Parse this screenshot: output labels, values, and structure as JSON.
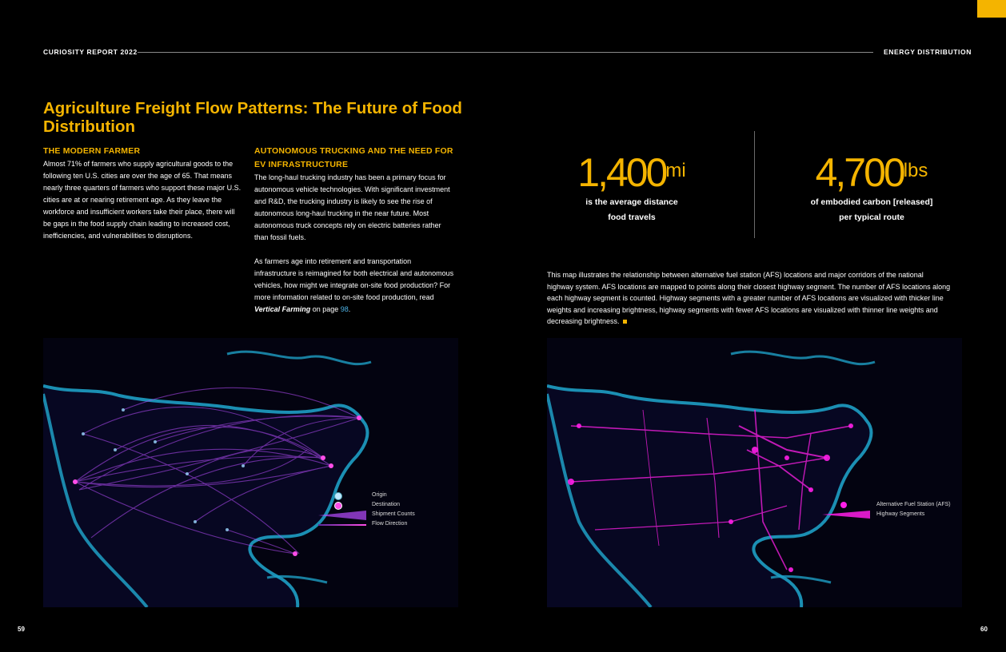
{
  "header": {
    "left": "CURIOSITY REPORT 2022",
    "right": "ENERGY DISTRIBUTION"
  },
  "title": "Agriculture Freight Flow Patterns: The Future of Food Distribution",
  "sections": {
    "modern_farmer": {
      "heading": "THE MODERN FARMER",
      "body": "Almost 71% of farmers who supply agricultural goods to the following ten U.S. cities are over the age of 65. That means nearly three quarters of farmers who support these major U.S. cities are at or nearing retirement age. As they leave the workforce and insufficient workers take their place, there will be gaps in the food supply chain leading to increased cost, inefficiencies, and vulnerabilities to disruptions."
    },
    "autonomous": {
      "heading": "AUTONOMOUS TRUCKING AND THE NEED FOR EV INFRASTRUCTURE",
      "p1": "The long-haul trucking industry has been a primary focus for autonomous vehicle technologies. With significant investment and R&D, the trucking industry is likely to see the rise of autonomous long-haul trucking in the near future. Most autonomous truck concepts rely on electric batteries rather than fossil fuels.",
      "p2_lead": "As farmers age into retirement and transportation infrastructure is reimagined for both electrical and autonomous vehicles, how might we integrate on-site food production? For more information related to on-site food production, read ",
      "p2_ref": "Vertical Farming",
      "p2_mid": " on page ",
      "p2_page": "98",
      "p2_end": "."
    }
  },
  "stats": [
    {
      "value": "1,400",
      "unit": "mi",
      "line1": "is the average distance",
      "line2": "food travels"
    },
    {
      "value": "4,700",
      "unit": "lbs",
      "line1": "of embodied carbon [released]",
      "line2": "per typical route"
    }
  ],
  "caption": "This map illustrates the relationship between alternative fuel station (AFS) locations and major corridors of the national highway system. AFS locations are mapped to points along their closest highway segment. The number of AFS locations along each highway segment is counted. Highway segments with a greater number of AFS locations are visualized with thicker line weights and increasing brightness, highway segments with fewer AFS locations are visualized with thinner line weights and decreasing brightness.",
  "legend_left": {
    "origin": "Origin",
    "destination": "Destination",
    "shipment": "Shipment Counts",
    "flow": "Flow Direction"
  },
  "legend_right": {
    "afs": "Alternative Fuel Station (AFS)",
    "segments": "Highway Segments"
  },
  "colors": {
    "accent": "#f4b400",
    "flow": "#b84dff",
    "afs": "#ff1fe8",
    "coast": "#1e9fc4"
  },
  "page_left": "59",
  "page_right": "60"
}
